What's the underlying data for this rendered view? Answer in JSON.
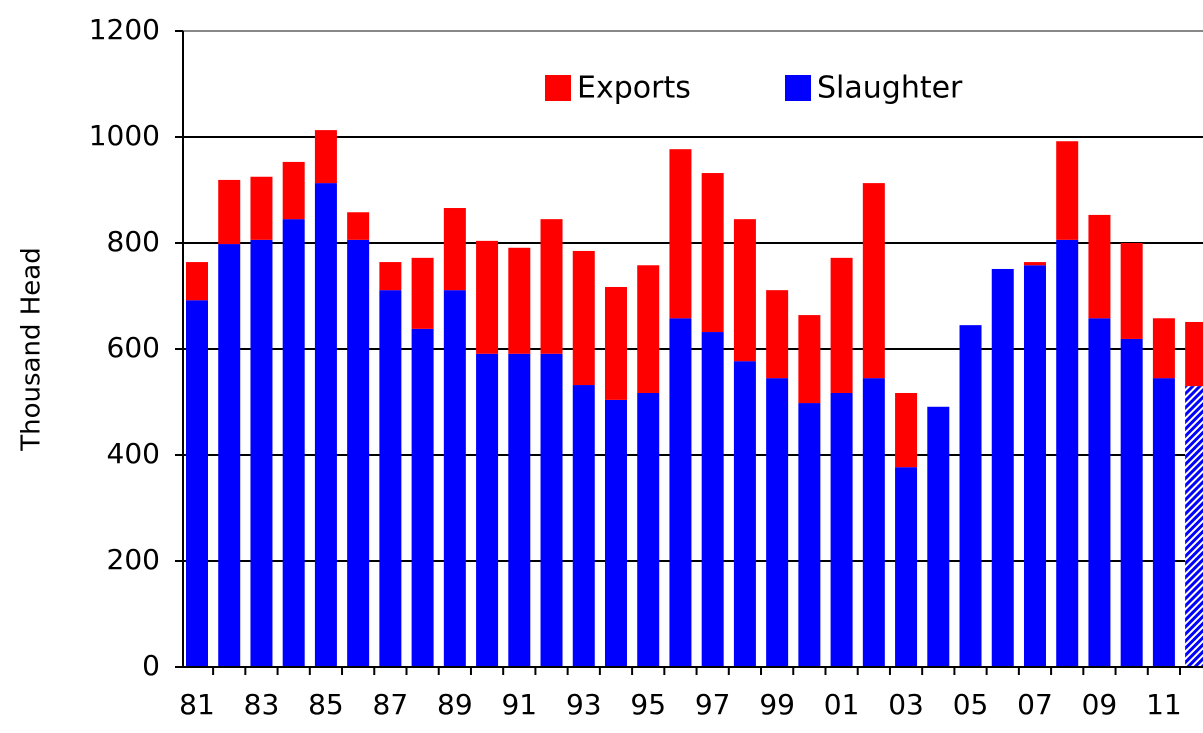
{
  "chart_data": {
    "type": "stacked_bar",
    "y_label": "Thousand Head",
    "categories": [
      "81",
      null,
      "83",
      null,
      "85",
      null,
      "87",
      null,
      "89",
      null,
      "91",
      null,
      "93",
      null,
      "95",
      null,
      "97",
      null,
      "99",
      null,
      "01",
      null,
      "03",
      null,
      "05",
      null,
      "07",
      null,
      "09",
      null,
      "11",
      null
    ],
    "series": [
      {
        "name": "Exports",
        "color": "#ff0000",
        "values": [
          72,
          121,
          119,
          108,
          100,
          52,
          53,
          134,
          155,
          213,
          200,
          254,
          253,
          213,
          241,
          319,
          300,
          268,
          166,
          166,
          255,
          368,
          140,
          0,
          0,
          0,
          6,
          186,
          195,
          181,
          113,
          121
        ]
      },
      {
        "name": "Slaughter",
        "color": "#0000ff",
        "hatch_last": true,
        "values": [
          692,
          798,
          806,
          845,
          913,
          806,
          711,
          638,
          711,
          591,
          591,
          591,
          532,
          504,
          517,
          658,
          632,
          577,
          545,
          498,
          517,
          545,
          377,
          491,
          645,
          751,
          758,
          806,
          658,
          619,
          545,
          530
        ]
      }
    ],
    "stack_order": [
      "Slaughter",
      "Exports"
    ],
    "ylim": [
      0,
      1200
    ],
    "yticks": [
      0,
      200,
      400,
      600,
      800,
      1000,
      1200
    ],
    "grid": true,
    "legend": "top"
  }
}
